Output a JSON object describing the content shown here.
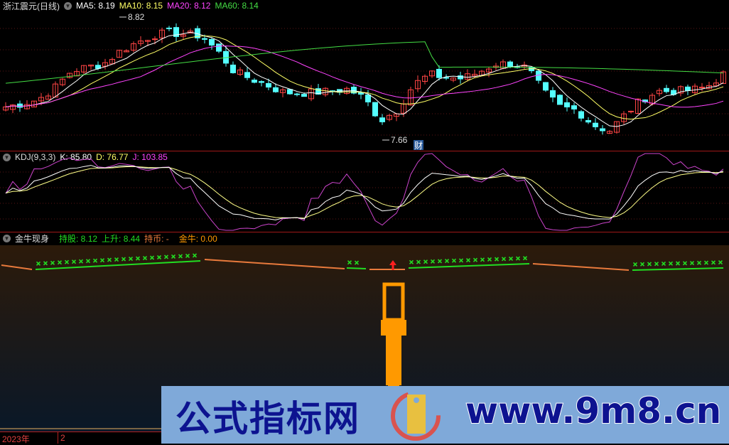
{
  "main": {
    "title": "浙江震元(日线)",
    "ma": [
      {
        "label": "MA5: 8.19",
        "color": "#ffffff"
      },
      {
        "label": "MA10: 8.15",
        "color": "#ffff66"
      },
      {
        "label": "MA20: 8.12",
        "color": "#ff44ff"
      },
      {
        "label": "MA60: 8.14",
        "color": "#44dd44"
      }
    ],
    "high_label": "8.82",
    "low_label": "7.66",
    "fin_badge": "财"
  },
  "kdj": {
    "title": "KDJ(9,3,3)",
    "k": "K: 85.80",
    "d": "D: 76.77",
    "j": "J: 103.85"
  },
  "indicator": {
    "title": "金牛现身",
    "hold": "持股: 8.12",
    "rise": "上升: 8.44",
    "coin": "持币: -",
    "bull": "金牛: 0.00"
  },
  "axis": {
    "year": "2023年",
    "month": "2"
  },
  "watermark": {
    "left": "公式指标网",
    "right": "www.9m8.cn"
  },
  "colors": {
    "up": "#ff4444",
    "down": "#54ffff",
    "hold_line": "#22dd22",
    "coin_line": "#e87a3c",
    "bull_bar": "#ff9900"
  },
  "chart_data": {
    "type": "candlestick",
    "ylim": [
      7.66,
      8.82
    ],
    "key_closes": [
      7.97,
      8.0,
      8.04,
      8.15,
      8.31,
      8.35,
      8.38,
      8.5,
      8.58,
      8.65,
      8.68,
      8.66,
      8.65,
      8.5,
      8.31,
      8.24,
      8.18,
      8.11,
      8.1,
      8.11,
      8.12,
      8.14,
      8.05,
      7.84,
      7.94,
      8.18,
      8.28,
      8.25,
      8.24,
      8.3,
      8.38,
      8.38,
      8.34,
      8.11,
      7.97,
      7.94,
      7.8,
      7.74,
      7.9,
      8.04,
      8.12,
      8.12,
      8.13,
      8.16,
      8.28
    ]
  }
}
